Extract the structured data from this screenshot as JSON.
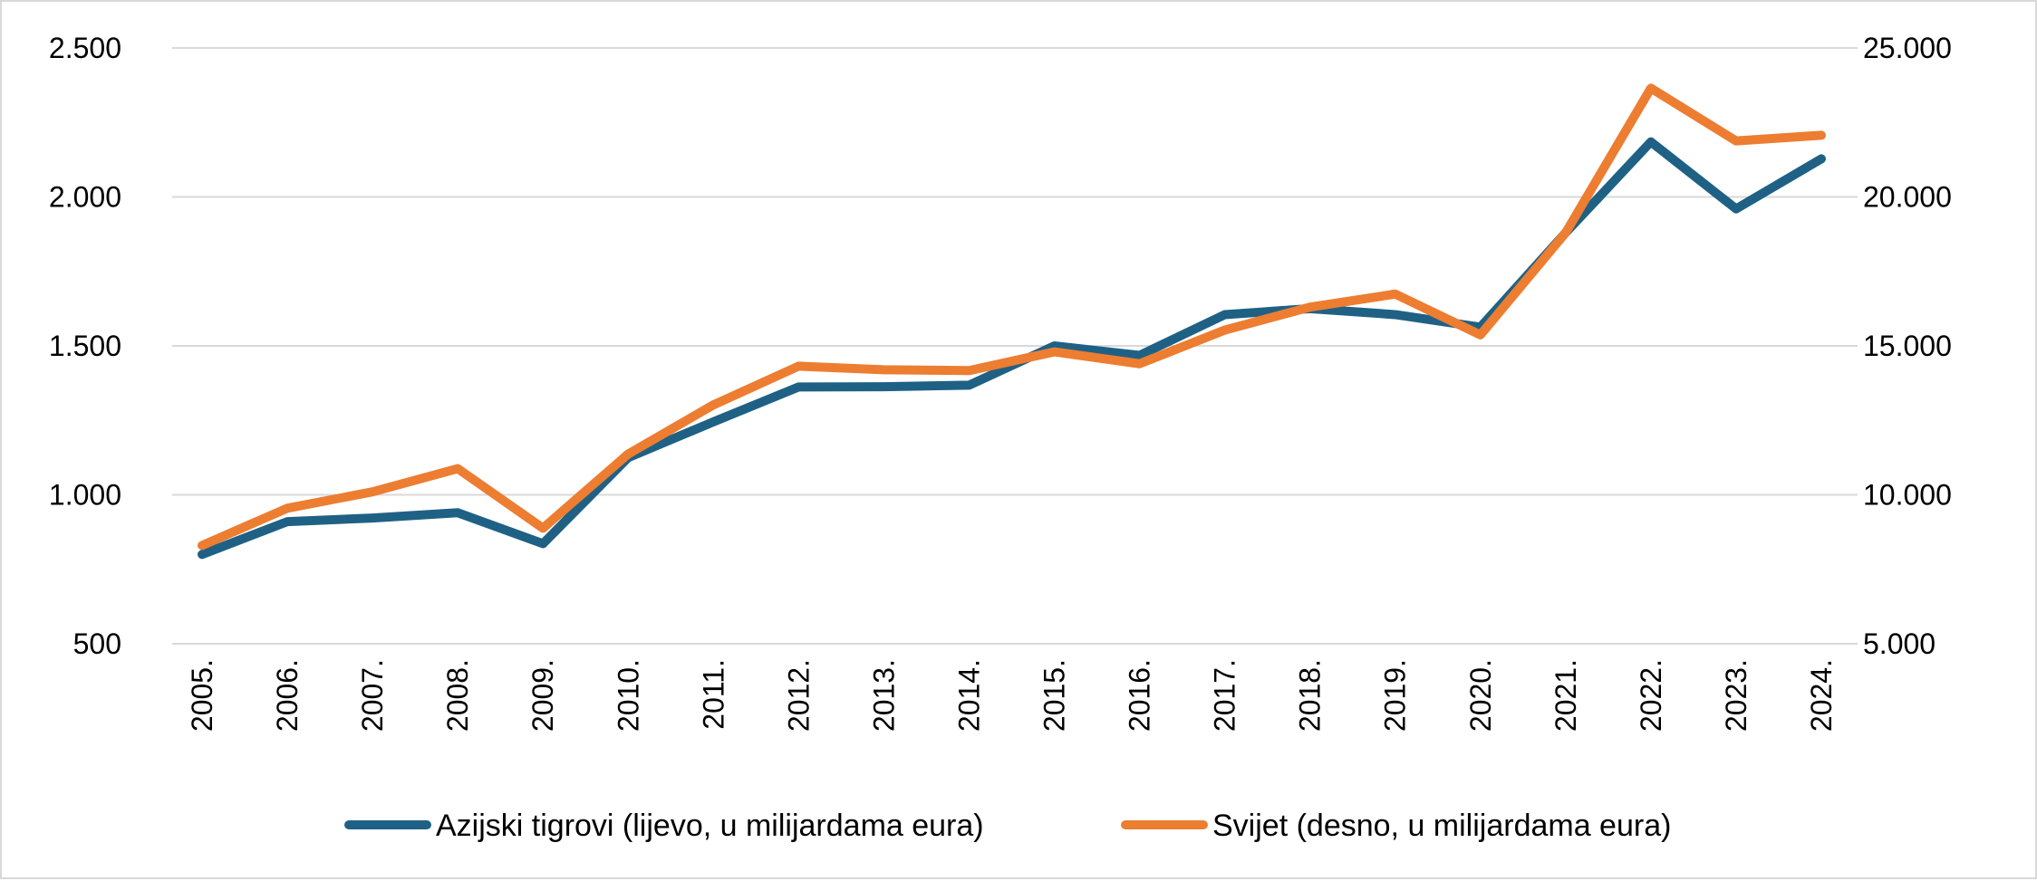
{
  "chart_data": {
    "type": "line",
    "categories": [
      "2005.",
      "2006.",
      "2007.",
      "2008.",
      "2009.",
      "2010.",
      "2011.",
      "2012.",
      "2013.",
      "2014.",
      "2015.",
      "2016.",
      "2017.",
      "2018.",
      "2019.",
      "2020.",
      "2021.",
      "2022.",
      "2023.",
      "2024."
    ],
    "series": [
      {
        "name": "Azijski tigrovi (lijevo, u milijardama eura)",
        "axis": "left",
        "color": "#1f6185",
        "values": [
          800,
          910,
          922,
          940,
          836,
          1125,
          1245,
          1362,
          1363,
          1368,
          1500,
          1468,
          1605,
          1625,
          1605,
          1563,
          1880,
          2185,
          1960,
          2128
        ]
      },
      {
        "name": "Svijet (desno, u milijardama eura)",
        "axis": "right",
        "color": "#ed7d31",
        "values": [
          8300,
          9550,
          10100,
          10880,
          8880,
          11370,
          13020,
          14320,
          14200,
          14170,
          14800,
          14400,
          15530,
          16300,
          16740,
          15370,
          18800,
          23650,
          21880,
          22070
        ]
      }
    ],
    "y_left": {
      "lim": [
        500,
        2500
      ],
      "ticks": [
        500,
        1000,
        1500,
        2000,
        2500
      ],
      "tick_labels": [
        "500",
        "1.000",
        "1.500",
        "2.000",
        "2.500"
      ]
    },
    "y_right": {
      "lim": [
        5000,
        25000
      ],
      "ticks": [
        5000,
        10000,
        15000,
        20000,
        25000
      ],
      "tick_labels": [
        "5.000",
        "10.000",
        "15.000",
        "20.000",
        "25.000"
      ]
    },
    "grid": true,
    "legend_position": "bottom"
  }
}
